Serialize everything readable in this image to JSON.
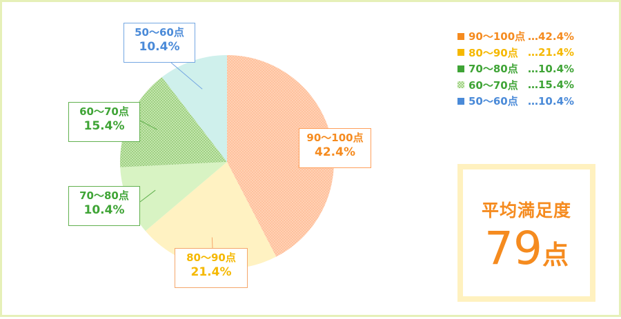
{
  "chart_data": {
    "type": "pie",
    "slices": [
      {
        "label": "90〜100点",
        "value": 42.4,
        "pct_text": "42.4%",
        "legend_pct": "…42.4%",
        "color": "#ffc6a6",
        "border_color": "#ff9f5a",
        "text_color": "#f58b1f",
        "pattern": "dots"
      },
      {
        "label": "80〜90点",
        "value": 21.4,
        "pct_text": "21.4%",
        "legend_pct": "…21.4%",
        "color": "#fff2c2",
        "border_color": "#f5a66a",
        "text_color": "#f5b800",
        "pattern": "solid"
      },
      {
        "label": "70〜80点",
        "value": 10.4,
        "pct_text": "10.4%",
        "legend_pct": "…10.4%",
        "color": "#d8f3c3",
        "border_color": "#61b04e",
        "text_color": "#3fa436",
        "pattern": "solid"
      },
      {
        "label": "60〜70点",
        "value": 15.4,
        "pct_text": "15.4%",
        "legend_pct": "…15.4%",
        "color": "#b9e0a2",
        "border_color": "#61b04e",
        "text_color": "#3fa436",
        "pattern": "checker"
      },
      {
        "label": "50〜60点",
        "value": 10.4,
        "pct_text": "10.4%",
        "legend_pct": "…10.4%",
        "color": "#cff0ec",
        "border_color": "#74a6e2",
        "text_color": "#4a8ad8",
        "pattern": "solid"
      }
    ],
    "legend_placement": "top-right",
    "grid": false
  },
  "legend_colors": [
    "#f58b1f",
    "#f5b800",
    "#3fa436",
    "#3fa436",
    "#4a8ad8"
  ],
  "summary": {
    "title": "平均満足度",
    "value": "79",
    "unit": "点",
    "color": "#f58b1f"
  }
}
